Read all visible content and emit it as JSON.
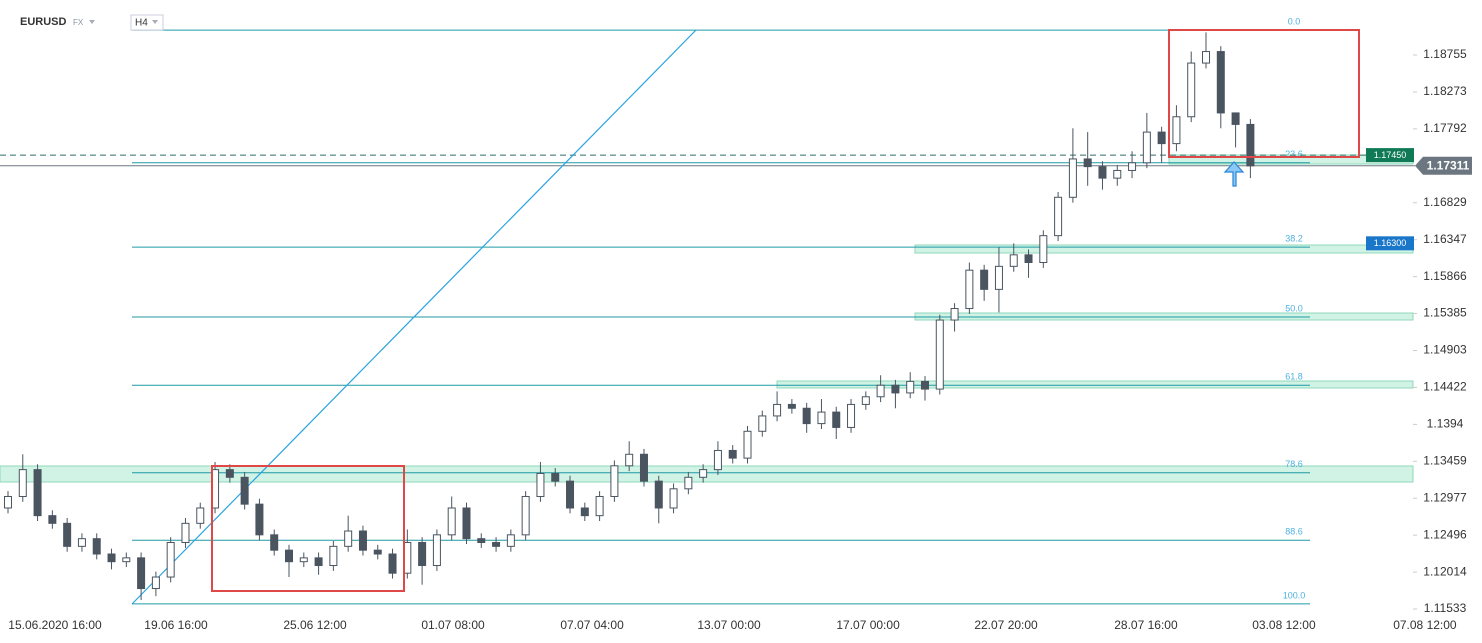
{
  "chart_data": {
    "type": "candlestick",
    "symbol": "EURUSD",
    "market": "FX",
    "interval": "H4",
    "x": [
      0,
      1,
      2,
      3,
      4,
      5,
      6,
      7,
      8,
      9,
      10,
      11,
      12,
      13,
      14,
      15,
      16,
      17,
      18,
      19,
      20,
      21,
      22,
      23,
      24,
      25,
      26,
      27,
      28,
      29,
      30,
      31,
      32,
      33,
      34,
      35,
      36,
      37,
      38,
      39,
      40,
      41,
      42,
      43,
      44,
      45,
      46,
      47,
      48,
      49,
      50,
      51,
      52,
      53,
      54,
      55,
      56,
      57,
      58,
      59,
      60,
      61,
      62,
      63,
      64,
      65,
      66,
      67,
      68,
      69,
      70,
      71,
      72,
      73,
      74,
      75,
      76,
      77,
      78,
      79,
      80,
      81,
      82,
      83,
      84
    ],
    "open": [
      1.1285,
      1.13,
      1.1335,
      1.1275,
      1.1265,
      1.1235,
      1.1245,
      1.1225,
      1.1215,
      1.122,
      1.118,
      1.1195,
      1.124,
      1.1265,
      1.1285,
      1.1335,
      1.1325,
      1.129,
      1.125,
      1.123,
      1.1215,
      1.122,
      1.121,
      1.1235,
      1.1255,
      1.123,
      1.1225,
      1.12,
      1.124,
      1.121,
      1.125,
      1.1285,
      1.1245,
      1.124,
      1.1235,
      1.125,
      1.13,
      1.133,
      1.132,
      1.1285,
      1.1275,
      1.13,
      1.134,
      1.1355,
      1.132,
      1.1285,
      1.131,
      1.1325,
      1.1335,
      1.136,
      1.135,
      1.1385,
      1.1405,
      1.142,
      1.1415,
      1.1395,
      1.141,
      1.139,
      1.142,
      1.143,
      1.1445,
      1.1435,
      1.145,
      1.144,
      1.153,
      1.1545,
      1.1595,
      1.157,
      1.16,
      1.1615,
      1.1605,
      1.164,
      1.169,
      1.174,
      1.173,
      1.1715,
      1.1725,
      1.1735,
      1.1775,
      1.176,
      1.1795,
      1.1865,
      1.188,
      1.18,
      1.1785
    ],
    "high": [
      1.1307,
      1.1355,
      1.1342,
      1.1282,
      1.1272,
      1.1252,
      1.1252,
      1.1232,
      1.1227,
      1.1227,
      1.1202,
      1.1247,
      1.1272,
      1.1292,
      1.1345,
      1.1342,
      1.1332,
      1.1297,
      1.1257,
      1.1237,
      1.1227,
      1.1227,
      1.1242,
      1.1275,
      1.1262,
      1.1237,
      1.1232,
      1.1257,
      1.1247,
      1.1257,
      1.13,
      1.1292,
      1.1252,
      1.1247,
      1.1257,
      1.1307,
      1.1345,
      1.1337,
      1.1327,
      1.1292,
      1.1307,
      1.1347,
      1.1372,
      1.1362,
      1.1327,
      1.1317,
      1.1332,
      1.1342,
      1.1372,
      1.1367,
      1.1392,
      1.1412,
      1.1437,
      1.1427,
      1.1422,
      1.1427,
      1.1417,
      1.1427,
      1.1437,
      1.1458,
      1.1452,
      1.1462,
      1.1457,
      1.1537,
      1.1552,
      1.1605,
      1.1602,
      1.1625,
      1.163,
      1.1622,
      1.1647,
      1.1697,
      1.178,
      1.1775,
      1.1737,
      1.1732,
      1.175,
      1.18,
      1.1782,
      1.181,
      1.188,
      1.1905,
      1.1887,
      1.1795,
      1.1792
    ],
    "low": [
      1.1278,
      1.1293,
      1.1268,
      1.1258,
      1.1228,
      1.1228,
      1.1218,
      1.1205,
      1.1208,
      1.1165,
      1.117,
      1.1188,
      1.1233,
      1.1258,
      1.1278,
      1.1318,
      1.1283,
      1.1243,
      1.1223,
      1.1195,
      1.1208,
      1.1198,
      1.1203,
      1.1228,
      1.1223,
      1.1218,
      1.1193,
      1.1193,
      1.1185,
      1.1203,
      1.1243,
      1.1238,
      1.1233,
      1.1228,
      1.1228,
      1.1243,
      1.1293,
      1.1313,
      1.1278,
      1.1268,
      1.1268,
      1.1293,
      1.1333,
      1.1313,
      1.1265,
      1.1278,
      1.1303,
      1.1318,
      1.1328,
      1.1343,
      1.1343,
      1.1378,
      1.1398,
      1.1408,
      1.1383,
      1.1388,
      1.1375,
      1.1383,
      1.1413,
      1.1423,
      1.1415,
      1.1428,
      1.1425,
      1.1433,
      1.1515,
      1.1538,
      1.1555,
      1.154,
      1.1593,
      1.1585,
      1.1598,
      1.1633,
      1.1683,
      1.1705,
      1.17,
      1.1705,
      1.1715,
      1.1728,
      1.1735,
      1.175,
      1.1788,
      1.1858,
      1.178,
      1.1755,
      1.1715
    ],
    "close": [
      1.13,
      1.1335,
      1.1275,
      1.1265,
      1.1235,
      1.1245,
      1.1225,
      1.1215,
      1.122,
      1.118,
      1.1195,
      1.124,
      1.1265,
      1.1285,
      1.1335,
      1.1325,
      1.129,
      1.125,
      1.123,
      1.1215,
      1.122,
      1.121,
      1.1235,
      1.1255,
      1.123,
      1.1225,
      1.12,
      1.124,
      1.121,
      1.125,
      1.1285,
      1.1245,
      1.124,
      1.1235,
      1.125,
      1.13,
      1.133,
      1.132,
      1.1285,
      1.1275,
      1.13,
      1.134,
      1.1355,
      1.132,
      1.1285,
      1.131,
      1.1325,
      1.1335,
      1.136,
      1.135,
      1.1385,
      1.1405,
      1.142,
      1.1415,
      1.1395,
      1.141,
      1.139,
      1.142,
      1.143,
      1.1445,
      1.1435,
      1.145,
      1.144,
      1.153,
      1.1545,
      1.1595,
      1.157,
      1.16,
      1.1615,
      1.1605,
      1.164,
      1.169,
      1.174,
      1.173,
      1.1715,
      1.1725,
      1.1735,
      1.1775,
      1.176,
      1.1795,
      1.1865,
      1.188,
      1.18,
      1.1785,
      1.1731
    ],
    "xlim": [
      -0.54,
      96.55
    ],
    "xticks": [
      {
        "value": 3.18,
        "label": "15.06.2020 16:00"
      },
      {
        "value": 11.36,
        "label": "19.06 16:00"
      },
      {
        "value": 20.76,
        "label": "25.06 12:00"
      },
      {
        "value": 30.09,
        "label": "01.07 08:00"
      },
      {
        "value": 39.49,
        "label": "07.07 04:00"
      },
      {
        "value": 48.75,
        "label": "13.07 00:00"
      },
      {
        "value": 58.15,
        "label": "17.07 00:00"
      },
      {
        "value": 67.48,
        "label": "22.07 20:00"
      },
      {
        "value": 76.94,
        "label": "28.07 16:00"
      },
      {
        "value": 86.27,
        "label": "03.08 12:00"
      },
      {
        "value": 95.8,
        "label": "07.08 12:00"
      }
    ],
    "ylim": [
      1.1109,
      1.19472
    ],
    "yticks": [
      1.18755,
      1.18273,
      1.17792,
      1.16829,
      1.16347,
      1.15866,
      1.15385,
      1.14903,
      1.14422,
      1.1394,
      1.13459,
      1.12977,
      1.12496,
      1.12014,
      1.11533
    ],
    "fib_levels": [
      {
        "label": "0.0",
        "price": 1.1908
      },
      {
        "label": "23.6",
        "price": 1.1735
      },
      {
        "label": "38.2",
        "price": 1.1625
      },
      {
        "label": "50.0",
        "price": 1.1534
      },
      {
        "label": "61.8",
        "price": 1.1445
      },
      {
        "label": "78.6",
        "price": 1.1331
      },
      {
        "label": "88.6",
        "price": 1.1243
      },
      {
        "label": "100.0",
        "price": 1.116
      }
    ],
    "current_price": 1.17311,
    "price_tags": [
      {
        "value": 1.1745,
        "label": "1.17450",
        "color": "#0f7a55"
      },
      {
        "value": 1.163,
        "label": "1.16300",
        "color": "#1976c8"
      }
    ]
  }
}
